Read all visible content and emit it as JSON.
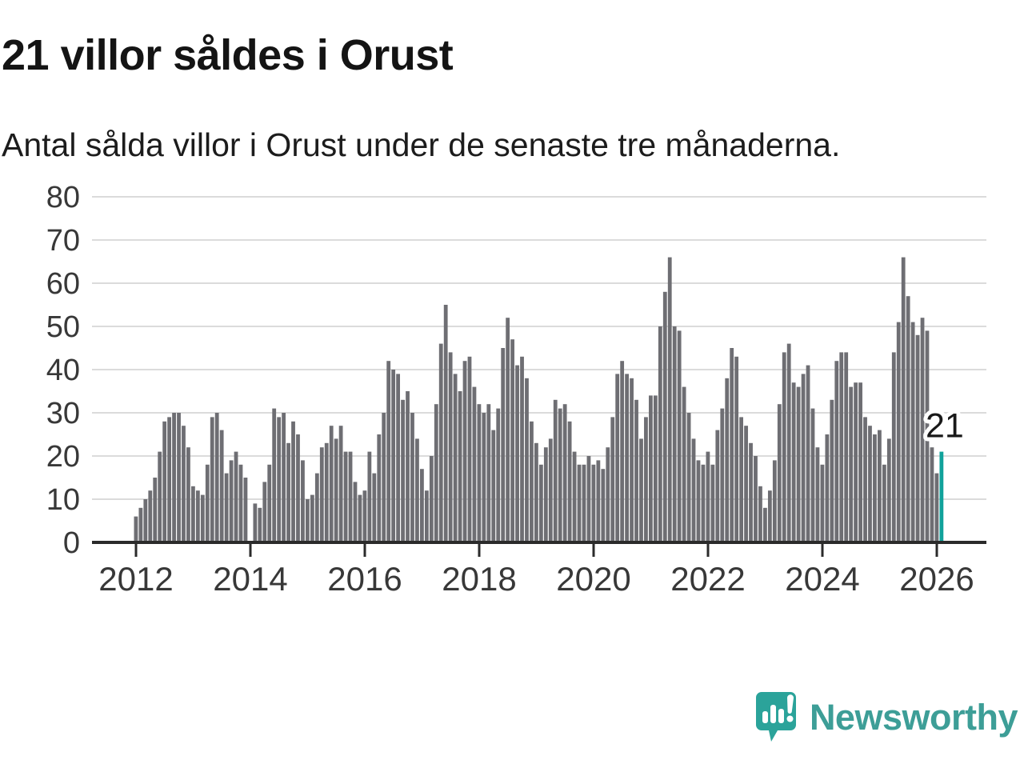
{
  "title": "21 villor såldes i Orust",
  "subtitle": "Antal sålda villor i Orust under de senaste tre månaderna.",
  "annotation": {
    "label": "21"
  },
  "logo": {
    "text": "Newsworthy",
    "text_color": "#3d9e97",
    "icon_color": "#2ba39a"
  },
  "colors": {
    "bar": "#6e6e73",
    "highlight": "#11a29b",
    "grid": "#dbdbdb",
    "axis": "#2b2b2b",
    "tick_label": "#383838",
    "annotation_text": "#191919"
  },
  "chart_data": {
    "type": "bar",
    "title": "21 villor såldes i Orust",
    "subtitle": "Antal sålda villor i Orust under de senaste tre månaderna.",
    "unit": "antal sålda villor (rullande tre månader)",
    "start_year": 2012,
    "start_month": 1,
    "frequency": "monthly",
    "ylim": [
      0,
      80
    ],
    "yticks": [
      0,
      10,
      20,
      30,
      40,
      50,
      60,
      70,
      80
    ],
    "xticks": [
      2012,
      2014,
      2016,
      2018,
      2020,
      2022,
      2024,
      2026
    ],
    "grid": true,
    "highlight_last": true,
    "last_value_label": "21",
    "values": [
      6,
      8,
      10,
      12,
      15,
      21,
      28,
      29,
      30,
      30,
      27,
      22,
      13,
      12,
      11,
      18,
      29,
      30,
      26,
      16,
      19,
      21,
      18,
      15,
      0,
      9,
      8,
      14,
      18,
      31,
      29,
      30,
      23,
      28,
      25,
      19,
      10,
      11,
      16,
      22,
      23,
      27,
      24,
      27,
      21,
      21,
      14,
      11,
      12,
      21,
      16,
      25,
      30,
      42,
      40,
      39,
      33,
      35,
      30,
      24,
      17,
      12,
      20,
      32,
      46,
      55,
      44,
      39,
      35,
      42,
      43,
      36,
      32,
      30,
      32,
      26,
      31,
      45,
      52,
      47,
      41,
      43,
      38,
      28,
      23,
      18,
      22,
      24,
      33,
      31,
      32,
      28,
      21,
      18,
      18,
      20,
      18,
      19,
      17,
      22,
      29,
      39,
      42,
      39,
      38,
      33,
      24,
      29,
      34,
      34,
      50,
      58,
      66,
      50,
      49,
      36,
      30,
      24,
      19,
      18,
      21,
      18,
      26,
      31,
      38,
      45,
      43,
      29,
      27,
      23,
      20,
      13,
      8,
      12,
      19,
      32,
      44,
      46,
      37,
      36,
      39,
      41,
      31,
      22,
      18,
      25,
      33,
      42,
      44,
      44,
      36,
      37,
      37,
      29,
      27,
      25,
      26,
      18,
      24,
      44,
      51,
      66,
      57,
      51,
      48,
      52,
      49,
      22,
      16,
      21
    ]
  }
}
